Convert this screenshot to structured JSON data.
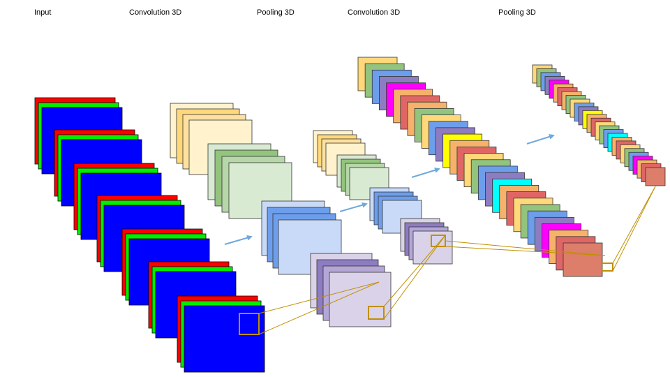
{
  "stage_labels": [
    "Input",
    "Convolution 3D",
    "Pooling 3D",
    "Convolution 3D",
    "Pooling 3D"
  ],
  "colors": {
    "input_red": "#ff0000",
    "input_green": "#00ee00",
    "input_blue": "#0000ff",
    "cream_light": "#fff2cc",
    "cream_mid": "#fee0a0",
    "cream_dark": "#ffd87a",
    "green_light": "#d9ead3",
    "green_mid": "#b6d7a8",
    "green_dark": "#93c47d",
    "blue_light": "#c9daf8",
    "blue_mid": "#6d9eeb",
    "purple_light": "#d9d2e9",
    "purple_mid": "#b4a7d6",
    "purple_dark": "#8e7cc3",
    "orange": "#f6b26b",
    "salmon": "#dd7e6b",
    "red_map": "#e06666",
    "magenta": "#ff00ff",
    "yellow": "#ffff00",
    "cyan": "#00ffff",
    "connector": "#bf9000",
    "arrow": "#6fa8dc"
  }
}
